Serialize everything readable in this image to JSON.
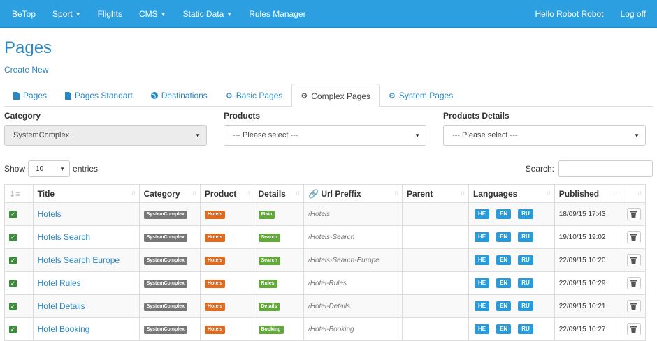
{
  "navbar": {
    "brand": "BeTop",
    "items": [
      {
        "label": "Sport",
        "caret": true
      },
      {
        "label": "Flights",
        "caret": false
      },
      {
        "label": "CMS",
        "caret": true
      },
      {
        "label": "Static Data",
        "caret": true
      },
      {
        "label": "Rules Manager",
        "caret": false
      }
    ],
    "greeting": "Hello Robot Robot",
    "logoff": "Log off"
  },
  "page": {
    "title": "Pages",
    "create_new": "Create New"
  },
  "tabs": [
    {
      "label": "Pages",
      "icon": "file-icon",
      "active": false
    },
    {
      "label": "Pages Standart",
      "icon": "file-icon",
      "active": false
    },
    {
      "label": "Destinations",
      "icon": "globe-icon",
      "active": false
    },
    {
      "label": "Basic Pages",
      "icon": "gear-icon",
      "active": false
    },
    {
      "label": "Complex Pages",
      "icon": "gear-icon",
      "active": true
    },
    {
      "label": "System Pages",
      "icon": "gear-icon",
      "active": false
    }
  ],
  "filters": {
    "category": {
      "label": "Category",
      "value": "SystemComplex"
    },
    "products": {
      "label": "Products",
      "value": "--- Please select ---"
    },
    "details": {
      "label": "Products Details",
      "value": "--- Please select ---"
    }
  },
  "table_tools": {
    "show_label": "Show",
    "entries_value": "10",
    "entries_label": "entries",
    "search_label": "Search:"
  },
  "table": {
    "columns": [
      "",
      "Title",
      "Category",
      "Product",
      "Details",
      "Url Preffix",
      "Parent",
      "Languages",
      "Published",
      ""
    ],
    "rows": [
      {
        "title": "Hotels",
        "category": "SystemComplex",
        "product": "Hotels",
        "details": "Main",
        "url": "/Hotels",
        "parent": "",
        "languages": [
          "HE",
          "EN",
          "RU"
        ],
        "published": "18/09/15 17:43"
      },
      {
        "title": "Hotels Search",
        "category": "SystemComplex",
        "product": "Hotels",
        "details": "Search",
        "url": "/Hotels-Search",
        "parent": "",
        "languages": [
          "HE",
          "EN",
          "RU"
        ],
        "published": "19/10/15 19:02"
      },
      {
        "title": "Hotels Search Europe",
        "category": "SystemComplex",
        "product": "Hotels",
        "details": "Search",
        "url": "/Hotels-Search-Europe",
        "parent": "",
        "languages": [
          "HE",
          "EN",
          "RU"
        ],
        "published": "22/09/15 10:20"
      },
      {
        "title": "Hotel Rules",
        "category": "SystemComplex",
        "product": "Hotels",
        "details": "Rules",
        "url": "/Hotel-Rules",
        "parent": "",
        "languages": [
          "HE",
          "EN",
          "RU"
        ],
        "published": "22/09/15 10:29"
      },
      {
        "title": "Hotel Details",
        "category": "SystemComplex",
        "product": "Hotels",
        "details": "Details",
        "url": "/Hotel-Details",
        "parent": "",
        "languages": [
          "HE",
          "EN",
          "RU"
        ],
        "published": "22/09/15 10:21"
      },
      {
        "title": "Hotel Booking",
        "category": "SystemComplex",
        "product": "Hotels",
        "details": "Booking",
        "url": "/Hotel-Booking",
        "parent": "",
        "languages": [
          "HE",
          "EN",
          "RU"
        ],
        "published": "22/09/15 10:27"
      }
    ]
  },
  "colors": {
    "navbar": "#2c9fe0",
    "link": "#2a87c4",
    "label_gray": "#777777",
    "label_orange": "#e06b1e",
    "label_green": "#63a83a",
    "lang_blue": "#2a9bd8"
  }
}
